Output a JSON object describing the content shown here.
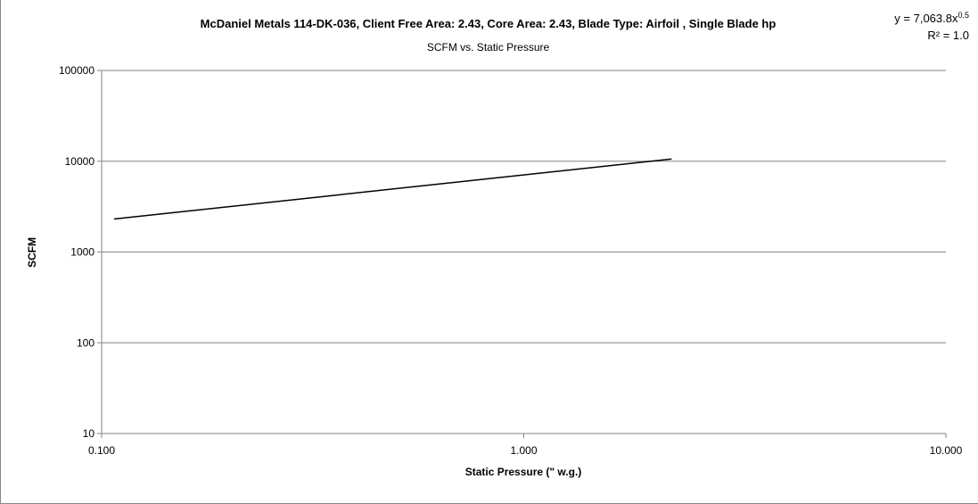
{
  "chart_data": {
    "type": "line",
    "title": "McDaniel Metals 114-DK-036, Client Free Area: 2.43, Core Area: 2.43, Blade Type: Airfoil , Single Blade hp",
    "subtitle": "SCFM vs. Static Pressure",
    "xlabel": "Static Pressure (\" w.g.)",
    "ylabel": "SCFM",
    "x_scale": "log",
    "y_scale": "log",
    "xlim": [
      0.1,
      10
    ],
    "ylim": [
      10,
      100000
    ],
    "x_ticks": [
      "0.100",
      "1.000",
      "10.000"
    ],
    "y_ticks": [
      "10",
      "100",
      "1000",
      "10000",
      "100000"
    ],
    "grid": "horizontal",
    "series": [
      {
        "x": [
          0.107,
          2.24
        ],
        "y": [
          2310,
          10570
        ],
        "color": "#000000"
      }
    ],
    "trendline": {
      "equation_prefix": "y = 7,063.8x",
      "equation_exponent": "0.5",
      "r_squared": "R² = 1.0"
    }
  }
}
